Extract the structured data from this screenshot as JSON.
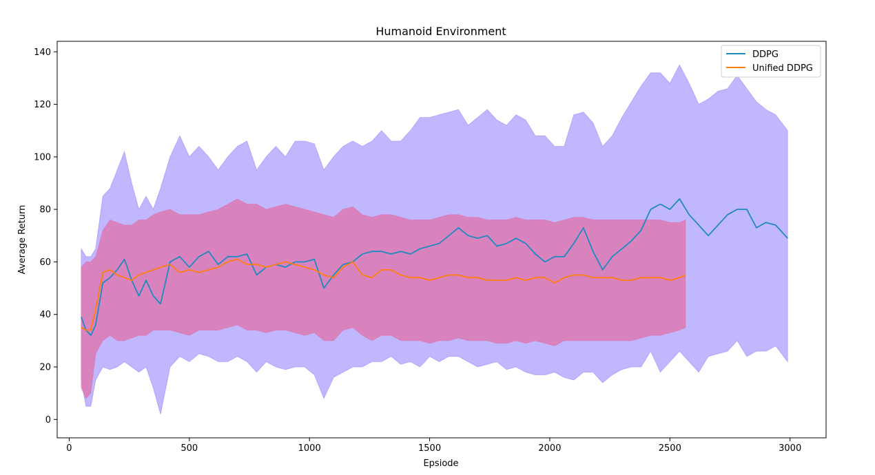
{
  "chart_data": {
    "type": "line",
    "title": "Humanoid Environment",
    "xlabel": "Epsiode",
    "ylabel": "Average Return",
    "xlim": [
      -50,
      3150
    ],
    "ylim": [
      -7,
      144
    ],
    "xticks": [
      0,
      500,
      1000,
      1500,
      2000,
      2500,
      3000
    ],
    "yticks": [
      0,
      20,
      40,
      60,
      80,
      100,
      120,
      140
    ],
    "grid": false,
    "legend_position": "top-right",
    "colors": {
      "ddpg_line": "#1f8ac0",
      "ddpg_band": "#8c7cff",
      "unified_line": "#ff7f0e",
      "unified_band": "#e070a8"
    },
    "series": [
      {
        "name": "DDPG",
        "x": [
          50,
          70,
          90,
          110,
          140,
          170,
          200,
          230,
          260,
          290,
          320,
          350,
          380,
          420,
          460,
          500,
          540,
          580,
          620,
          660,
          700,
          740,
          780,
          820,
          860,
          900,
          940,
          980,
          1020,
          1060,
          1100,
          1140,
          1180,
          1220,
          1260,
          1300,
          1340,
          1380,
          1420,
          1460,
          1500,
          1540,
          1580,
          1620,
          1660,
          1700,
          1740,
          1780,
          1820,
          1860,
          1900,
          1940,
          1980,
          2020,
          2060,
          2100,
          2140,
          2180,
          2220,
          2260,
          2300,
          2340,
          2380,
          2420,
          2460,
          2500,
          2540,
          2580,
          2620,
          2660,
          2700,
          2740,
          2780,
          2820,
          2860,
          2900,
          2940,
          2990
        ],
        "y": [
          39,
          34,
          32,
          36,
          52,
          54,
          57,
          61,
          53,
          47,
          53,
          47,
          44,
          60,
          62,
          58,
          62,
          64,
          59,
          62,
          62,
          63,
          55,
          58,
          59,
          58,
          60,
          60,
          61,
          50,
          55,
          59,
          60,
          63,
          64,
          64,
          63,
          64,
          63,
          65,
          66,
          67,
          70,
          73,
          70,
          69,
          70,
          66,
          67,
          69,
          67,
          63,
          60,
          62,
          62,
          67,
          73,
          64,
          57,
          62,
          65,
          68,
          72,
          80,
          82,
          80,
          84,
          78,
          74,
          70,
          74,
          78,
          80,
          80,
          73,
          75,
          74,
          69
        ],
        "lower": [
          15,
          5,
          5,
          15,
          20,
          19,
          20,
          22,
          20,
          18,
          20,
          12,
          2,
          20,
          24,
          22,
          25,
          24,
          22,
          22,
          24,
          22,
          18,
          22,
          20,
          19,
          20,
          20,
          17,
          8,
          16,
          18,
          20,
          20,
          22,
          22,
          24,
          21,
          22,
          20,
          24,
          22,
          24,
          24,
          22,
          20,
          21,
          22,
          19,
          20,
          18,
          17,
          17,
          18,
          16,
          15,
          18,
          18,
          14,
          17,
          19,
          20,
          20,
          26,
          18,
          22,
          26,
          22,
          18,
          24,
          25,
          26,
          30,
          24,
          26,
          26,
          28,
          22
        ],
        "upper": [
          65,
          62,
          62,
          65,
          85,
          88,
          95,
          102,
          90,
          80,
          85,
          80,
          88,
          100,
          108,
          100,
          104,
          100,
          95,
          100,
          104,
          106,
          95,
          100,
          104,
          100,
          106,
          106,
          105,
          95,
          100,
          104,
          106,
          104,
          106,
          110,
          106,
          106,
          110,
          115,
          115,
          116,
          117,
          118,
          112,
          115,
          118,
          114,
          112,
          116,
          114,
          108,
          108,
          104,
          104,
          116,
          117,
          113,
          104,
          108,
          115,
          121,
          127,
          132,
          132,
          128,
          135,
          128,
          120,
          122,
          125,
          126,
          131,
          126,
          121,
          118,
          116,
          110
        ]
      },
      {
        "name": "Unified DDPG",
        "x": [
          50,
          70,
          90,
          110,
          140,
          170,
          200,
          230,
          260,
          290,
          320,
          350,
          380,
          420,
          460,
          500,
          540,
          580,
          620,
          660,
          700,
          740,
          780,
          820,
          860,
          900,
          940,
          980,
          1020,
          1060,
          1100,
          1140,
          1180,
          1220,
          1260,
          1300,
          1340,
          1380,
          1420,
          1460,
          1500,
          1540,
          1580,
          1620,
          1660,
          1700,
          1740,
          1780,
          1820,
          1860,
          1900,
          1940,
          1980,
          2020,
          2060,
          2100,
          2140,
          2180,
          2220,
          2260,
          2300,
          2340,
          2380,
          2420,
          2460,
          2500,
          2540,
          2565
        ],
        "y": [
          35,
          34,
          34,
          42,
          56,
          57,
          55,
          54,
          53,
          55,
          56,
          57,
          58,
          59,
          56,
          57,
          56,
          57,
          58,
          60,
          61,
          59,
          59,
          58,
          59,
          60,
          59,
          58,
          57,
          55,
          54,
          58,
          60,
          55,
          54,
          57,
          57,
          55,
          54,
          54,
          53,
          54,
          55,
          55,
          54,
          54,
          53,
          53,
          53,
          54,
          53,
          54,
          54,
          52,
          54,
          55,
          55,
          54,
          54,
          54,
          53,
          53,
          54,
          54,
          54,
          53,
          54,
          55
        ],
        "lower": [
          12,
          8,
          10,
          25,
          30,
          32,
          30,
          30,
          31,
          32,
          32,
          34,
          34,
          34,
          33,
          32,
          34,
          34,
          34,
          35,
          36,
          34,
          34,
          33,
          34,
          34,
          33,
          32,
          33,
          30,
          30,
          34,
          35,
          32,
          30,
          32,
          32,
          30,
          30,
          30,
          29,
          30,
          30,
          31,
          30,
          30,
          30,
          29,
          29,
          30,
          29,
          30,
          29,
          28,
          30,
          30,
          30,
          30,
          30,
          30,
          30,
          30,
          31,
          32,
          32,
          33,
          34,
          35
        ],
        "upper": [
          58,
          60,
          60,
          62,
          72,
          76,
          75,
          74,
          74,
          76,
          76,
          78,
          79,
          80,
          78,
          78,
          78,
          79,
          80,
          82,
          84,
          82,
          82,
          80,
          81,
          82,
          81,
          80,
          79,
          78,
          77,
          80,
          81,
          78,
          77,
          78,
          78,
          77,
          76,
          76,
          76,
          77,
          78,
          78,
          77,
          77,
          76,
          76,
          76,
          77,
          76,
          76,
          76,
          75,
          76,
          77,
          77,
          76,
          76,
          76,
          76,
          76,
          76,
          76,
          76,
          75,
          75,
          76
        ]
      }
    ]
  }
}
